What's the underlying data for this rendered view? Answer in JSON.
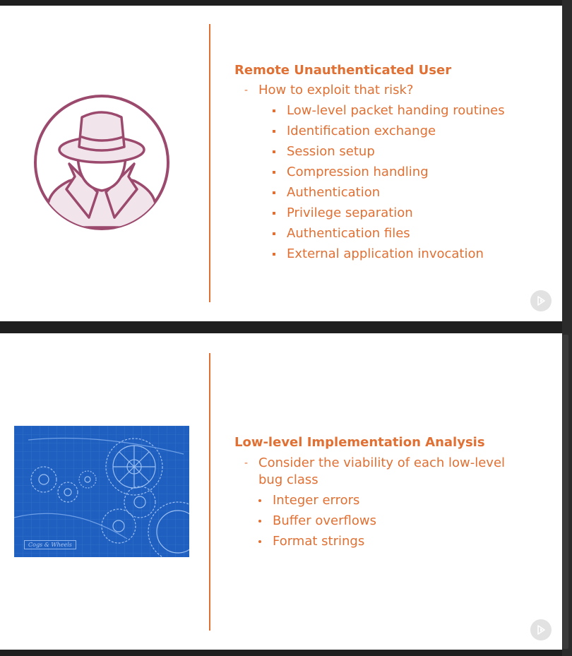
{
  "slides": [
    {
      "heading": "Remote Unauthenticated User",
      "sub_marker": "-",
      "sub": "How to exploit that risk?",
      "bullets": [
        "Low-level packet handing routines",
        "Identification exchange",
        "Session setup",
        "Compression handling",
        "Authentication",
        "Privilege separation",
        "Authentication files",
        "External application invocation"
      ],
      "icon": "spy-icon"
    },
    {
      "heading": "Low-level Implementation Analysis",
      "sub_marker": "-",
      "sub_line1": "Consider the viability of each low-level",
      "sub_line2": "bug class",
      "bullets": [
        "Integer errors",
        "Buffer overflows",
        "Format strings"
      ],
      "image_label": "Cogs & Wheels",
      "icon": "cogs-blueprint"
    }
  ],
  "colors": {
    "accent": "#e07033",
    "icon_stroke": "#9b4a6e",
    "icon_fill": "#f1e4ea",
    "blueprint": "#1f5fbf"
  },
  "badge_icon": "play-icon"
}
